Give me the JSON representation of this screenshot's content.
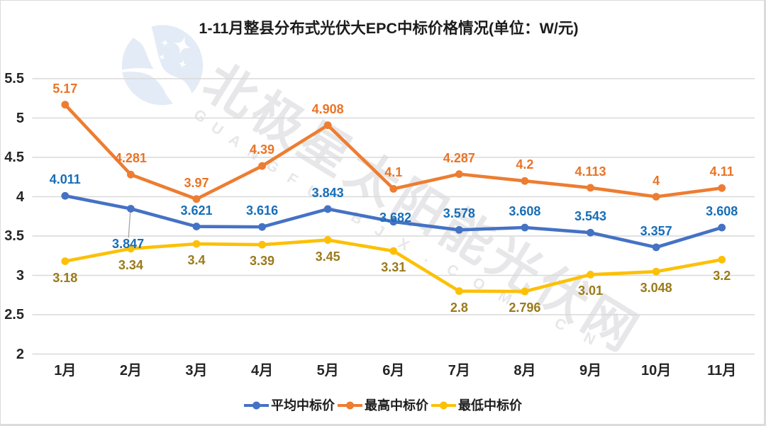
{
  "page": {
    "outer_background": "#dcdcdc",
    "canvas_background": "#ffffff"
  },
  "title": "1-11月整县分布式光伏大EPC中标价格情况(单位：W/元)",
  "watermark": {
    "logo_icon": "crescent-moon-with-stars",
    "logo_color": "#e3ebf6",
    "text_cn": "北极星太阳能光伏网",
    "text_en": "GUANGFU.BJX.COM.CN",
    "text_color": "#e7e7e9"
  },
  "chart_data": {
    "type": "line",
    "title": "1-11月整县分布式光伏大EPC中标价格情况(单位：W/元)",
    "xlabel": "",
    "ylabel": "",
    "grid": true,
    "gridline_color": "#d9d9d9",
    "legend_position": "bottom",
    "ylim": [
      2,
      5.5
    ],
    "ytick_step": 0.5,
    "yticks": [
      "2",
      "2.5",
      "3",
      "3.5",
      "4",
      "4.5",
      "5",
      "5.5"
    ],
    "categories": [
      "1月",
      "2月",
      "3月",
      "4月",
      "5月",
      "6月",
      "7月",
      "8月",
      "9月",
      "10月",
      "11月"
    ],
    "series": [
      {
        "name": "平均中标价",
        "key": "average-winning-bid-price",
        "color": "#4472c4",
        "label_color": "#176eb8",
        "label_side": "above",
        "values": [
          4.011,
          3.847,
          3.621,
          3.616,
          3.843,
          3.682,
          3.578,
          3.608,
          3.543,
          3.357,
          3.608
        ],
        "label_overrides": {
          "1": {
            "dx": -3.8,
            "dy": 49.7,
            "leader": true
          },
          "5": {
            "dx": 2.8,
            "dy": -5.5
          }
        }
      },
      {
        "name": "最高中标价",
        "key": "highest-winning-bid-price",
        "color": "#ed7d31",
        "label_color": "#ea7426",
        "label_side": "above",
        "values": [
          5.17,
          4.281,
          3.97,
          4.39,
          4.908,
          4.1,
          4.287,
          4.2,
          4.113,
          4,
          4.11
        ]
      },
      {
        "name": "最低中标价",
        "key": "lowest-winning-bid-price",
        "color": "#fcc006",
        "label_color": "#9a7a1a",
        "label_side": "below",
        "values": [
          3.18,
          3.34,
          3.4,
          3.39,
          3.45,
          3.31,
          2.8,
          2.796,
          3.01,
          3.048,
          3.2
        ]
      }
    ],
    "leader_line_color": "#a6a6a6"
  }
}
